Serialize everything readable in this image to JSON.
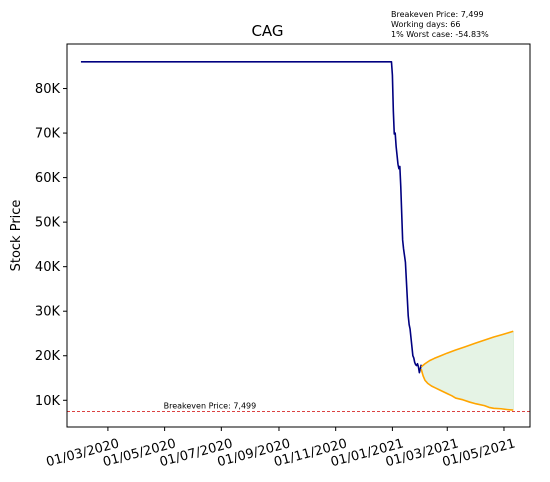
{
  "chart_data": {
    "type": "line",
    "title": "CAG",
    "ylabel": "Stock Price",
    "xlabel": "",
    "xlim": [
      "2020-01-17",
      "2021-05-29"
    ],
    "ylim": [
      4000,
      90000
    ],
    "grid": false,
    "x_ticks": [
      "2020-03-01",
      "2020-05-01",
      "2020-07-01",
      "2020-09-01",
      "2020-11-01",
      "2021-01-01",
      "2021-03-01",
      "2021-05-01"
    ],
    "x_tick_labels": [
      "01/03/2020",
      "01/05/2020",
      "01/07/2020",
      "01/09/2020",
      "01/11/2020",
      "01/01/2021",
      "01/03/2021",
      "01/05/2021"
    ],
    "y_ticks": [
      10000,
      20000,
      30000,
      40000,
      50000,
      60000,
      70000,
      80000
    ],
    "y_tick_labels": [
      "10K",
      "20K",
      "30K",
      "40K",
      "50K",
      "60K",
      "70K",
      "80K"
    ],
    "info_lines": [
      "Breakeven Price: 7,499",
      "Working days: 66",
      "1% Worst case: -54.83%"
    ],
    "breakeven": {
      "value": 7499,
      "label": "Breakeven Price: 7,499",
      "label_date": "2020-05-01",
      "color": "#d62728"
    },
    "series": [
      {
        "role": "history",
        "color": "#000080",
        "points": [
          [
            "2020-02-01",
            86000
          ],
          [
            "2020-07-01",
            86000
          ],
          [
            "2020-12-31",
            86000
          ],
          [
            "2021-01-01",
            83000
          ],
          [
            "2021-01-02",
            75000
          ],
          [
            "2021-01-03",
            69800
          ],
          [
            "2021-01-04",
            70000
          ],
          [
            "2021-01-05",
            67000
          ],
          [
            "2021-01-06",
            65000
          ],
          [
            "2021-01-07",
            63000
          ],
          [
            "2021-01-08",
            62000
          ],
          [
            "2021-01-09",
            62500
          ],
          [
            "2021-01-10",
            58000
          ],
          [
            "2021-01-11",
            52000
          ],
          [
            "2021-01-12",
            46000
          ],
          [
            "2021-01-13",
            44000
          ],
          [
            "2021-01-14",
            42500
          ],
          [
            "2021-01-15",
            41000
          ],
          [
            "2021-01-16",
            37000
          ],
          [
            "2021-01-17",
            33000
          ],
          [
            "2021-01-18",
            29000
          ],
          [
            "2021-01-19",
            27000
          ],
          [
            "2021-01-20",
            26000
          ],
          [
            "2021-01-21",
            24000
          ],
          [
            "2021-01-22",
            22000
          ],
          [
            "2021-01-23",
            20000
          ],
          [
            "2021-01-24",
            19500
          ],
          [
            "2021-01-25",
            18500
          ],
          [
            "2021-01-26",
            18000
          ],
          [
            "2021-01-27",
            17800
          ],
          [
            "2021-01-28",
            18200
          ],
          [
            "2021-01-29",
            17500
          ],
          [
            "2021-01-30",
            16200
          ],
          [
            "2021-01-31",
            17000
          ],
          [
            "2021-02-01",
            18000
          ]
        ]
      },
      {
        "role": "forecast-upper",
        "color": "#ffa500",
        "points": [
          [
            "2021-02-01",
            17500
          ],
          [
            "2021-02-05",
            18200
          ],
          [
            "2021-02-10",
            18900
          ],
          [
            "2021-02-15",
            19400
          ],
          [
            "2021-02-22",
            20000
          ],
          [
            "2021-03-01",
            20600
          ],
          [
            "2021-03-10",
            21300
          ],
          [
            "2021-03-20",
            22000
          ],
          [
            "2021-03-31",
            22800
          ],
          [
            "2021-04-10",
            23500
          ],
          [
            "2021-04-20",
            24200
          ],
          [
            "2021-04-30",
            24800
          ],
          [
            "2021-05-08",
            25300
          ],
          [
            "2021-05-11",
            25500
          ]
        ]
      },
      {
        "role": "forecast-lower",
        "color": "#ffa500",
        "points": [
          [
            "2021-02-01",
            17000
          ],
          [
            "2021-02-03",
            15500
          ],
          [
            "2021-02-05",
            14500
          ],
          [
            "2021-02-08",
            13800
          ],
          [
            "2021-02-12",
            13200
          ],
          [
            "2021-02-16",
            12800
          ],
          [
            "2021-02-22",
            12200
          ],
          [
            "2021-03-01",
            11500
          ],
          [
            "2021-03-06",
            11000
          ],
          [
            "2021-03-10",
            10500
          ],
          [
            "2021-03-18",
            10100
          ],
          [
            "2021-03-25",
            9600
          ],
          [
            "2021-04-01",
            9200
          ],
          [
            "2021-04-10",
            8800
          ],
          [
            "2021-04-15",
            8400
          ],
          [
            "2021-04-20",
            8200
          ],
          [
            "2021-04-28",
            8100
          ],
          [
            "2021-05-05",
            7900
          ],
          [
            "2021-05-11",
            7800
          ]
        ]
      }
    ],
    "band_color": "#2ca02c"
  }
}
